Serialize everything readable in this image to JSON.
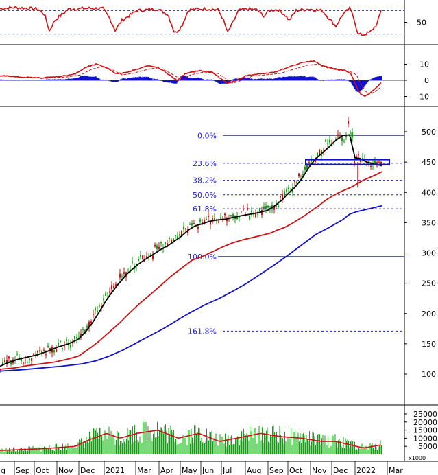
{
  "chart_data": {
    "type": "candlestick",
    "panels": {
      "oscillator": {
        "ticks": [
          "50"
        ],
        "dashed_levels": [
          80,
          20
        ]
      },
      "macd": {
        "ticks": [
          "10",
          "0",
          "-10"
        ]
      },
      "price": {
        "ticks": [
          "500",
          "450",
          "400",
          "350",
          "300",
          "250",
          "200",
          "150",
          "100"
        ],
        "ylim": [
          60,
          515
        ],
        "fibonacci": [
          {
            "label": "0.0%",
            "value": 494
          },
          {
            "label": "23.6%",
            "value": 448
          },
          {
            "label": "38.2%",
            "value": 420
          },
          {
            "label": "50.0%",
            "value": 396
          },
          {
            "label": "61.8%",
            "value": 373
          },
          {
            "label": "100.0%",
            "value": 294
          },
          {
            "label": "161.8%",
            "value": 171
          }
        ],
        "ma_black_pts": [
          [
            0,
            113
          ],
          [
            10,
            118
          ],
          [
            25,
            124
          ],
          [
            40,
            128
          ],
          [
            55,
            132
          ],
          [
            70,
            138
          ],
          [
            85,
            145
          ],
          [
            100,
            150
          ],
          [
            115,
            158
          ],
          [
            125,
            170
          ],
          [
            135,
            185
          ],
          [
            145,
            203
          ],
          [
            155,
            222
          ],
          [
            170,
            245
          ],
          [
            185,
            265
          ],
          [
            200,
            280
          ],
          [
            210,
            288
          ],
          [
            220,
            295
          ],
          [
            235,
            306
          ],
          [
            245,
            312
          ],
          [
            255,
            320
          ],
          [
            265,
            328
          ],
          [
            275,
            338
          ],
          [
            285,
            345
          ],
          [
            295,
            348
          ],
          [
            305,
            352
          ],
          [
            315,
            354
          ],
          [
            330,
            356
          ],
          [
            345,
            360
          ],
          [
            360,
            363
          ],
          [
            375,
            366
          ],
          [
            390,
            370
          ],
          [
            400,
            377
          ],
          [
            412,
            388
          ],
          [
            422,
            400
          ],
          [
            430,
            408
          ],
          [
            440,
            422
          ],
          [
            450,
            440
          ],
          [
            460,
            455
          ],
          [
            470,
            465
          ],
          [
            480,
            475
          ],
          [
            490,
            486
          ],
          [
            500,
            494
          ],
          [
            510,
            495
          ],
          [
            518,
            457
          ],
          [
            525,
            456
          ],
          [
            535,
            450
          ],
          [
            545,
            447
          ],
          [
            557,
            444
          ]
        ],
        "ma_red_pts": [
          [
            0,
            108
          ],
          [
            20,
            110
          ],
          [
            40,
            114
          ],
          [
            60,
            117
          ],
          [
            80,
            120
          ],
          [
            100,
            125
          ],
          [
            115,
            130
          ],
          [
            125,
            138
          ],
          [
            135,
            146
          ],
          [
            145,
            155
          ],
          [
            160,
            170
          ],
          [
            175,
            185
          ],
          [
            190,
            202
          ],
          [
            205,
            218
          ],
          [
            220,
            232
          ],
          [
            235,
            247
          ],
          [
            250,
            262
          ],
          [
            265,
            275
          ],
          [
            280,
            288
          ],
          [
            295,
            294
          ],
          [
            310,
            302
          ],
          [
            325,
            310
          ],
          [
            340,
            317
          ],
          [
            355,
            322
          ],
          [
            370,
            326
          ],
          [
            385,
            330
          ],
          [
            395,
            333
          ],
          [
            405,
            338
          ],
          [
            415,
            342
          ],
          [
            425,
            348
          ],
          [
            435,
            355
          ],
          [
            445,
            362
          ],
          [
            455,
            370
          ],
          [
            465,
            378
          ],
          [
            475,
            387
          ],
          [
            485,
            394
          ],
          [
            495,
            400
          ],
          [
            505,
            405
          ],
          [
            515,
            410
          ],
          [
            522,
            415
          ],
          [
            530,
            420
          ],
          [
            540,
            425
          ],
          [
            550,
            430
          ],
          [
            557,
            434
          ]
        ],
        "ma_blue_pts": [
          [
            0,
            105
          ],
          [
            30,
            107
          ],
          [
            60,
            110
          ],
          [
            90,
            113
          ],
          [
            120,
            117
          ],
          [
            140,
            122
          ],
          [
            160,
            130
          ],
          [
            180,
            140
          ],
          [
            200,
            152
          ],
          [
            220,
            164
          ],
          [
            240,
            176
          ],
          [
            260,
            190
          ],
          [
            280,
            203
          ],
          [
            300,
            215
          ],
          [
            320,
            225
          ],
          [
            340,
            237
          ],
          [
            360,
            250
          ],
          [
            380,
            265
          ],
          [
            400,
            280
          ],
          [
            420,
            296
          ],
          [
            440,
            313
          ],
          [
            460,
            330
          ],
          [
            480,
            342
          ],
          [
            500,
            355
          ],
          [
            510,
            364
          ],
          [
            520,
            368
          ],
          [
            535,
            372
          ],
          [
            557,
            378
          ]
        ],
        "highlight_box": {
          "x": [
            446,
            568
          ],
          "y": [
            446,
            454
          ]
        }
      },
      "volume": {
        "ticks": [
          "25000",
          "20000",
          "15000",
          "10000",
          "5000"
        ],
        "unit_label": "x1000"
      }
    },
    "x_labels": [
      {
        "label": "g",
        "x": 1
      },
      {
        "label": "Sep",
        "x": 23
      },
      {
        "label": "Oct",
        "x": 52
      },
      {
        "label": "Nov",
        "x": 85
      },
      {
        "label": "Dec",
        "x": 117
      },
      {
        "label": "2021",
        "x": 154
      },
      {
        "label": "Mar",
        "x": 200
      },
      {
        "label": "Apr",
        "x": 234
      },
      {
        "label": "May",
        "x": 265
      },
      {
        "label": "Jun",
        "x": 295
      },
      {
        "label": "Jul",
        "x": 325
      },
      {
        "label": "Aug",
        "x": 360
      },
      {
        "label": "Sep",
        "x": 393
      },
      {
        "label": "Oct",
        "x": 422
      },
      {
        "label": "Nov",
        "x": 455
      },
      {
        "label": "Dec",
        "x": 486
      },
      {
        "label": "2022",
        "x": 520
      },
      {
        "label": "Mar",
        "x": 567
      }
    ]
  }
}
